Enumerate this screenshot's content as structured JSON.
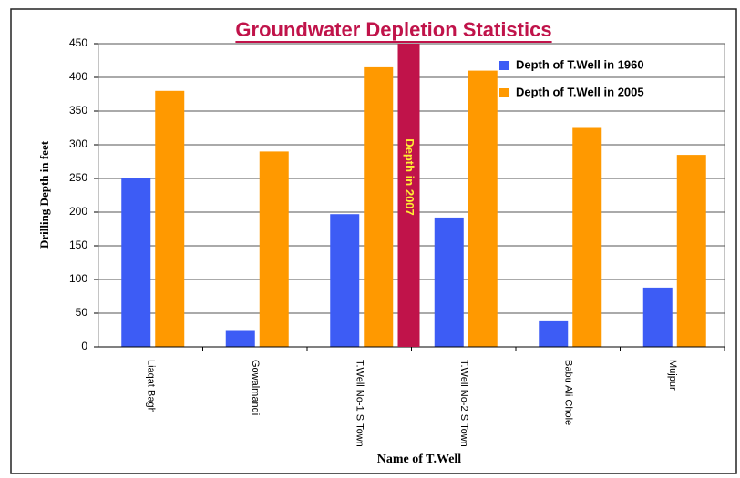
{
  "chart_data": {
    "type": "bar",
    "title": "Groundwater Depletion Statistics",
    "xlabel": "Name of T.Well",
    "ylabel": "Drilling Depth in feet",
    "categories": [
      "Liaqat Bagh",
      "Gowalmandi",
      "T.Well No-1 S.Town",
      "T.Well No-2 S.Town",
      "Babu Ali Chole",
      "Mujpur"
    ],
    "series": [
      {
        "name": "Depth of T.Well in 1960",
        "color": "#3d5cf5",
        "values": [
          250,
          25,
          197,
          192,
          38,
          88
        ]
      },
      {
        "name": "Depth of T.Well in 2005",
        "color": "#ff9900",
        "values": [
          380,
          290,
          415,
          410,
          325,
          285
        ]
      }
    ],
    "annotation": {
      "text": "Depth in 2007",
      "value": 450,
      "color": "#c0134a",
      "text_color": "#ffee33"
    },
    "ylim": [
      0,
      450
    ],
    "yticks": [
      0,
      50,
      100,
      150,
      200,
      250,
      300,
      350,
      400,
      450
    ],
    "grid": true,
    "legend": "upper right"
  }
}
